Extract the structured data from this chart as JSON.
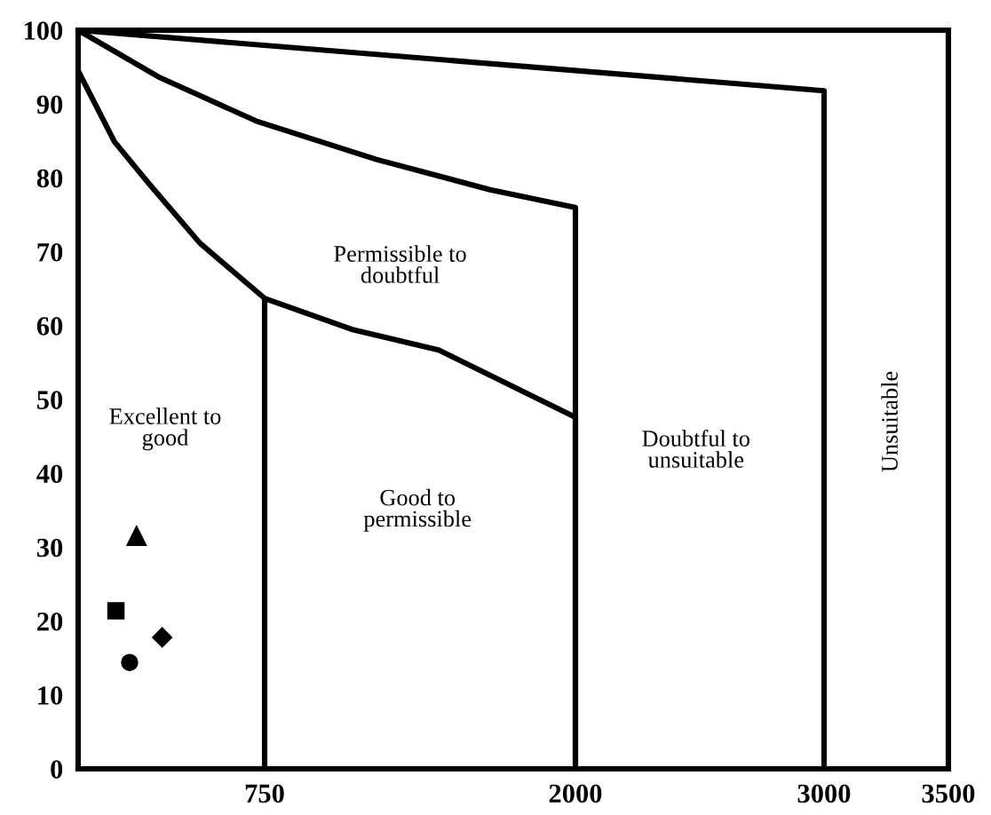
{
  "chart_data": {
    "type": "line",
    "series": [
      {
        "color": "#000000",
        "x": [
          0,
          3000,
          3000
        ],
        "values": [
          100,
          91.8,
          0
        ]
      },
      {
        "color": "#000000",
        "x": [
          0,
          322,
          716,
          1200,
          1657,
          2000,
          2000
        ],
        "values": [
          100,
          93.7,
          87.7,
          82.5,
          78.4,
          76,
          0
        ]
      },
      {
        "color": "#000000",
        "x": [
          0,
          146,
          283,
          489,
          750,
          1100,
          1450,
          2000,
          2000
        ],
        "values": [
          94.5,
          84.9,
          79.3,
          71.2,
          63.7,
          59.5,
          56.7,
          47.6,
          0
        ]
      },
      {
        "color": "#000000",
        "x": [
          750,
          750
        ],
        "values": [
          63.7,
          0
        ]
      },
      {
        "type": "scatter",
        "color": "#000000",
        "marker": "triangle",
        "x": [
          235
        ],
        "values": [
          31.5
        ]
      },
      {
        "type": "scatter",
        "color": "#000000",
        "marker": "square",
        "x": [
          152
        ],
        "values": [
          21.4
        ]
      },
      {
        "type": "scatter",
        "color": "#000000",
        "marker": "circle",
        "x": [
          207
        ],
        "values": [
          14.4
        ]
      },
      {
        "type": "scatter",
        "color": "#000000",
        "marker": "diamond",
        "x": [
          338
        ],
        "values": [
          17.8
        ]
      }
    ],
    "xlim": [
      0,
      3500
    ],
    "xticks": [
      750,
      2000,
      3000,
      3500
    ],
    "ylim": [
      0,
      100
    ],
    "yticks": [
      0,
      10,
      20,
      30,
      40,
      50,
      60,
      70,
      80,
      90,
      100
    ],
    "grid": false,
    "legend": false,
    "annotations": [
      "Excellent to\ngood",
      "Good to\npermissible",
      "Permissible to\ndoubtful",
      "Doubtful to\nunsuitable",
      "Unsuitable"
    ]
  }
}
